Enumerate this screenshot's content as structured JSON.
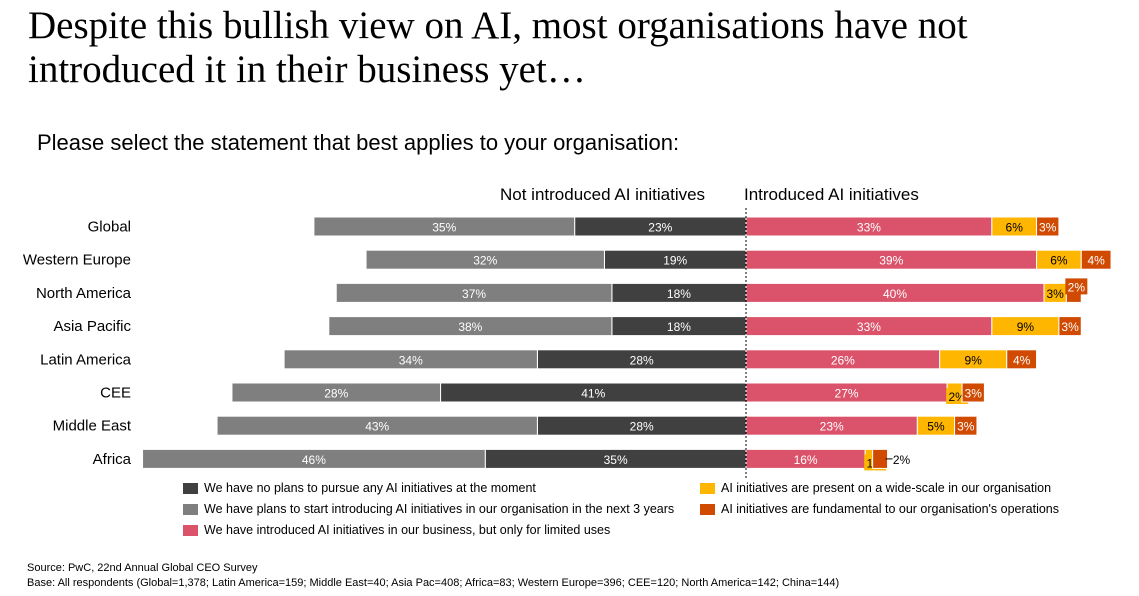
{
  "title": "Despite this bullish view on AI, most organisations have not introduced it in their business yet…",
  "subtitle": "Please select the statement that best applies to your organisation:",
  "headers": {
    "left": "Not introduced AI initiatives",
    "right": "Introduced AI initiatives"
  },
  "chart_data": {
    "type": "bar",
    "orientation": "horizontal",
    "stacking": "diverging",
    "categories": [
      "Global",
      "Western Europe",
      "North America",
      "Asia Pacific",
      "Latin America",
      "CEE",
      "Middle East",
      "Africa"
    ],
    "unit": "%",
    "series": [
      {
        "name": "We have no plans to pursue any AI initiatives at the moment",
        "side": "left",
        "color": "#404040",
        "values": [
          23,
          19,
          18,
          18,
          28,
          41,
          28,
          35
        ]
      },
      {
        "name": "We have plans to start introducing AI initiatives in our organisation in the next 3 years",
        "side": "left",
        "color": "#7f7f7f",
        "values": [
          35,
          32,
          37,
          38,
          34,
          28,
          43,
          46
        ]
      },
      {
        "name": "We have introduced AI initiatives in our business, but only for limited uses",
        "side": "right",
        "color": "#db536a",
        "values": [
          33,
          39,
          40,
          33,
          26,
          27,
          23,
          16
        ]
      },
      {
        "name": "AI initiatives are present on a wide-scale in our organisation",
        "side": "right",
        "color": "#ffb600",
        "values": [
          6,
          6,
          3,
          9,
          9,
          2,
          5,
          1
        ]
      },
      {
        "name": "AI initiatives are fundamental to our organisation's operations",
        "side": "right",
        "color": "#d04a02",
        "values": [
          3,
          4,
          2,
          3,
          4,
          3,
          3,
          2
        ]
      }
    ],
    "legend_position": "bottom",
    "grid": false
  },
  "source": "Source: PwC, 22nd Annual Global CEO Survey",
  "base": "Base: All respondents (Global=1,378; Latin America=159; Middle East=40; Asia Pac=408; Africa=83; Western Europe=396; CEE=120; North America=142; China=144)"
}
